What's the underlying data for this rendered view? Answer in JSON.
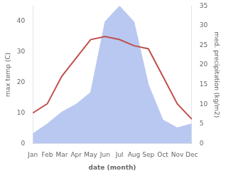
{
  "chart_data": {
    "type": "line",
    "xlabel": "date (month)",
    "ylabel": "max temp (C)",
    "y2label": "med. precipitation (kg/m2)",
    "categories": [
      "Jan",
      "Feb",
      "Mar",
      "Apr",
      "May",
      "Jun",
      "Jul",
      "Aug",
      "Sep",
      "Oct",
      "Nov",
      "Dec"
    ],
    "series": [
      {
        "type": "area",
        "axis": "y2",
        "color": "#b8c8f0",
        "values": [
          2.5,
          5,
          8,
          10,
          13,
          31,
          35,
          31,
          15,
          6,
          4,
          5
        ]
      },
      {
        "type": "line",
        "axis": "y",
        "color": "#c0504d",
        "values": [
          10,
          13,
          22,
          28,
          34,
          35,
          34,
          32,
          31,
          22,
          13,
          8
        ]
      }
    ],
    "ylim": [
      0,
      45
    ],
    "yticks": [
      0,
      10,
      20,
      30,
      40
    ],
    "y2lim": [
      0,
      35
    ],
    "y2ticks": [
      0,
      5,
      10,
      15,
      20,
      25,
      30,
      35
    ],
    "grid": false,
    "legend": false
  }
}
